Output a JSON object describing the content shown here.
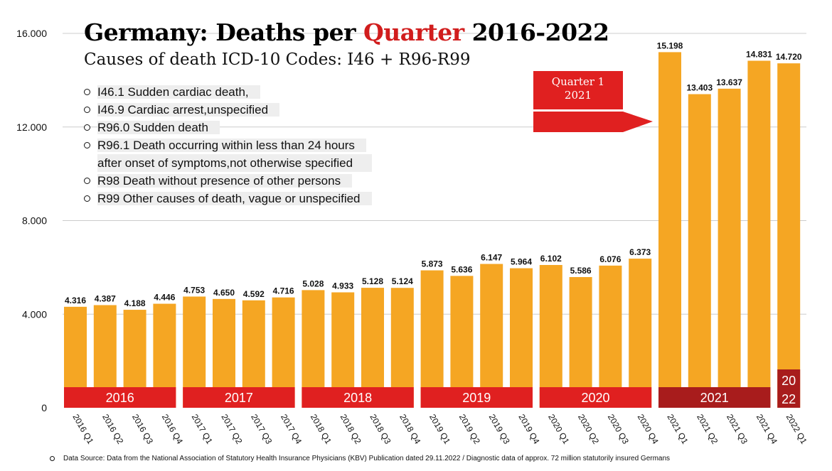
{
  "header": {
    "title_before": "Germany: Deaths per ",
    "title_highlight": "Quarter",
    "title_after": " 2016-2022",
    "subtitle": "Causes of death ICD-10 Codes: I46 + R96-R99"
  },
  "icd_codes": [
    {
      "line1": "I46.1 Sudden cardiac death,",
      "line2": ""
    },
    {
      "line1": "I46.9 Cardiac arrest,unspecified",
      "line2": ""
    },
    {
      "line1": "R96.0 Sudden death",
      "line2": ""
    },
    {
      "line1": "R96.1 Death occurring within less than 24 hours",
      "line2": "after onset of symptoms,not otherwise specified"
    },
    {
      "line1": "R98 Death without presence of other persons",
      "line2": ""
    },
    {
      "line1": "R99 Other causes of death, vague or unspecified",
      "line2": ""
    }
  ],
  "callout": {
    "line1": "Quarter 1",
    "line2": "2021"
  },
  "source_note": "Data Source: Data from the National Association of Statutory Health Insurance Physicians (KBV) Publication dated 29.11.2022 / Diagnostic data of approx. 72 million statutorily insured Germans",
  "colors": {
    "bar": "#f5a623",
    "year_band": "#e02020",
    "year_band_2021": "#a81c1c",
    "title_highlight": "#d11d1d",
    "grid": "#cccccc"
  },
  "chart_data": {
    "type": "bar",
    "categories": [
      "2016 Q1",
      "2016 Q2",
      "2016 Q3",
      "2016 Q4",
      "2017 Q1",
      "2017 Q2",
      "2017 Q3",
      "2017 Q4",
      "2018 Q1",
      "2018 Q2",
      "2018 Q3",
      "2018 Q4",
      "2019 Q1",
      "2019 Q2",
      "2019 Q3",
      "2019 Q4",
      "2020 Q1",
      "2020 Q2",
      "2020 Q3",
      "2020 Q4",
      "2021 Q1",
      "2021 Q2",
      "2021 Q3",
      "2021 Q4",
      "2022 Q1"
    ],
    "values": [
      4316,
      4387,
      4188,
      4446,
      4753,
      4650,
      4592,
      4716,
      5028,
      4933,
      5128,
      5124,
      5873,
      5636,
      6147,
      5964,
      6102,
      5586,
      6076,
      6373,
      15198,
      13403,
      13637,
      14831,
      14720
    ],
    "value_labels": [
      "4.316",
      "4.387",
      "4.188",
      "4.446",
      "4.753",
      "4.650",
      "4.592",
      "4.716",
      "5.028",
      "4.933",
      "5.128",
      "5.124",
      "5.873",
      "5.636",
      "6.147",
      "5.964",
      "6.102",
      "5.586",
      "6.076",
      "6.373",
      "15.198",
      "13.403",
      "13.637",
      "14.831",
      "14.720"
    ],
    "ylim": [
      0,
      16000
    ],
    "yticks": [
      0,
      4000,
      8000,
      12000,
      16000
    ],
    "ytick_labels": [
      "0",
      "4.000",
      "8.000",
      "12.000",
      "16.000"
    ],
    "grid": true,
    "year_bands": [
      {
        "label": "2016",
        "start": 0,
        "end": 3
      },
      {
        "label": "2017",
        "start": 4,
        "end": 7
      },
      {
        "label": "2018",
        "start": 8,
        "end": 11
      },
      {
        "label": "2019",
        "start": 12,
        "end": 15
      },
      {
        "label": "2020",
        "start": 16,
        "end": 19
      },
      {
        "label": "2021",
        "start": 20,
        "end": 23
      },
      {
        "label": "2022",
        "start": 24,
        "end": 24,
        "label_lines": [
          "20",
          "22"
        ]
      }
    ]
  }
}
